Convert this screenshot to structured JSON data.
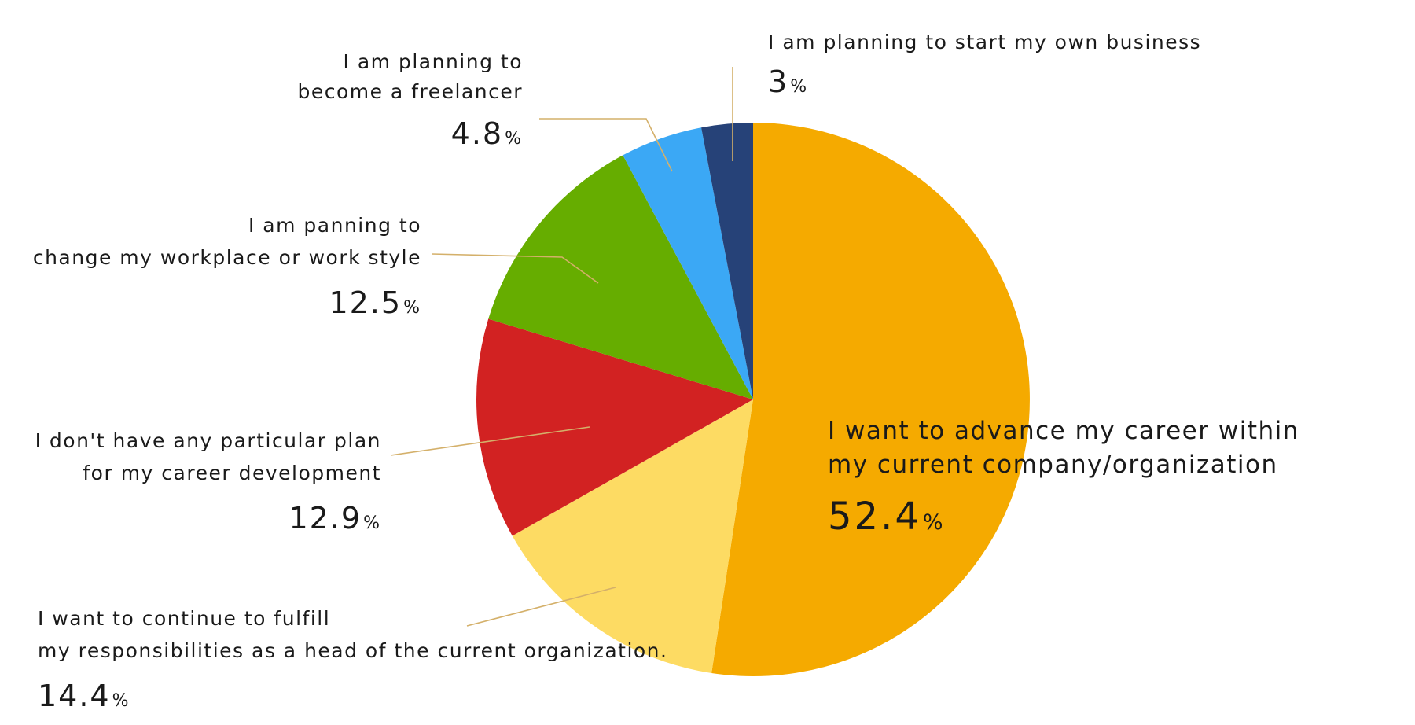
{
  "chart_data": {
    "type": "pie",
    "slices": [
      {
        "lines": [
          "I want to advance my career within",
          "my current company/organization"
        ],
        "value": 52.4,
        "pct_text": "52.4",
        "color": "#f5aa00"
      },
      {
        "lines": [
          "I want to continue to fulfill",
          "my responsibilities as a head of the current organization."
        ],
        "value": 14.4,
        "pct_text": "14.4",
        "color": "#fddb63"
      },
      {
        "lines": [
          "I don't have any particular plan",
          "for my career development"
        ],
        "value": 12.9,
        "pct_text": "12.9",
        "color": "#d22222"
      },
      {
        "lines": [
          "I am panning to",
          "change my workplace or work style"
        ],
        "value": 12.5,
        "pct_text": "12.5",
        "color": "#66ad00"
      },
      {
        "lines": [
          "I am planning to",
          "become a freelancer"
        ],
        "value": 4.8,
        "pct_text": "4.8",
        "color": "#3ba8f5"
      },
      {
        "lines": [
          "I am planning to start my own business"
        ],
        "value": 3,
        "pct_text": "3",
        "color": "#264278"
      }
    ],
    "percent_symbol": "%",
    "start": "12 o'clock",
    "direction": "clockwise"
  }
}
